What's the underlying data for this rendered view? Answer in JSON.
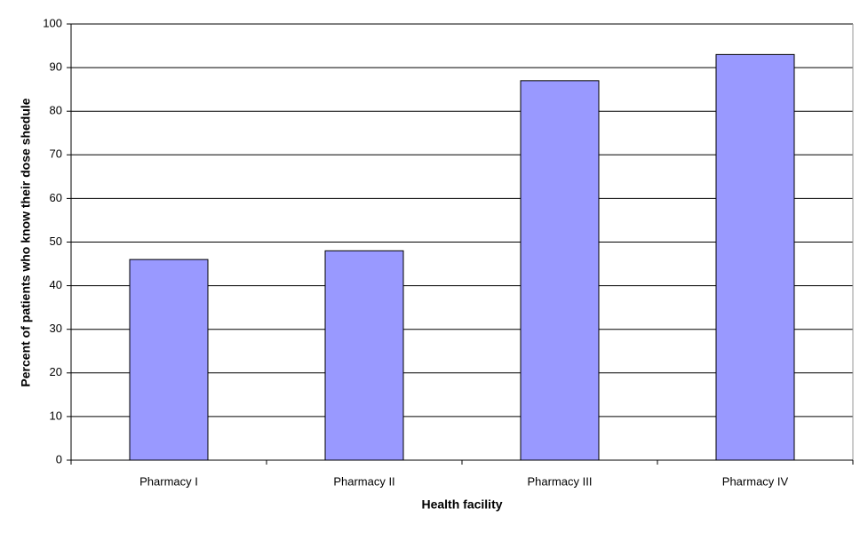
{
  "chart_data": {
    "type": "bar",
    "x_label": "Health facility",
    "y_label": "Percent of patients who know their dose shedule",
    "categories": [
      "Pharmacy I",
      "Pharmacy II",
      "Pharmacy III",
      "Pharmacy IV"
    ],
    "values": [
      46,
      48,
      87,
      93
    ],
    "color": "#9999ff",
    "ylim": [
      0,
      100
    ],
    "yticks": [
      0,
      10,
      20,
      30,
      40,
      50,
      60,
      70,
      80,
      90,
      100
    ],
    "grid": true
  }
}
